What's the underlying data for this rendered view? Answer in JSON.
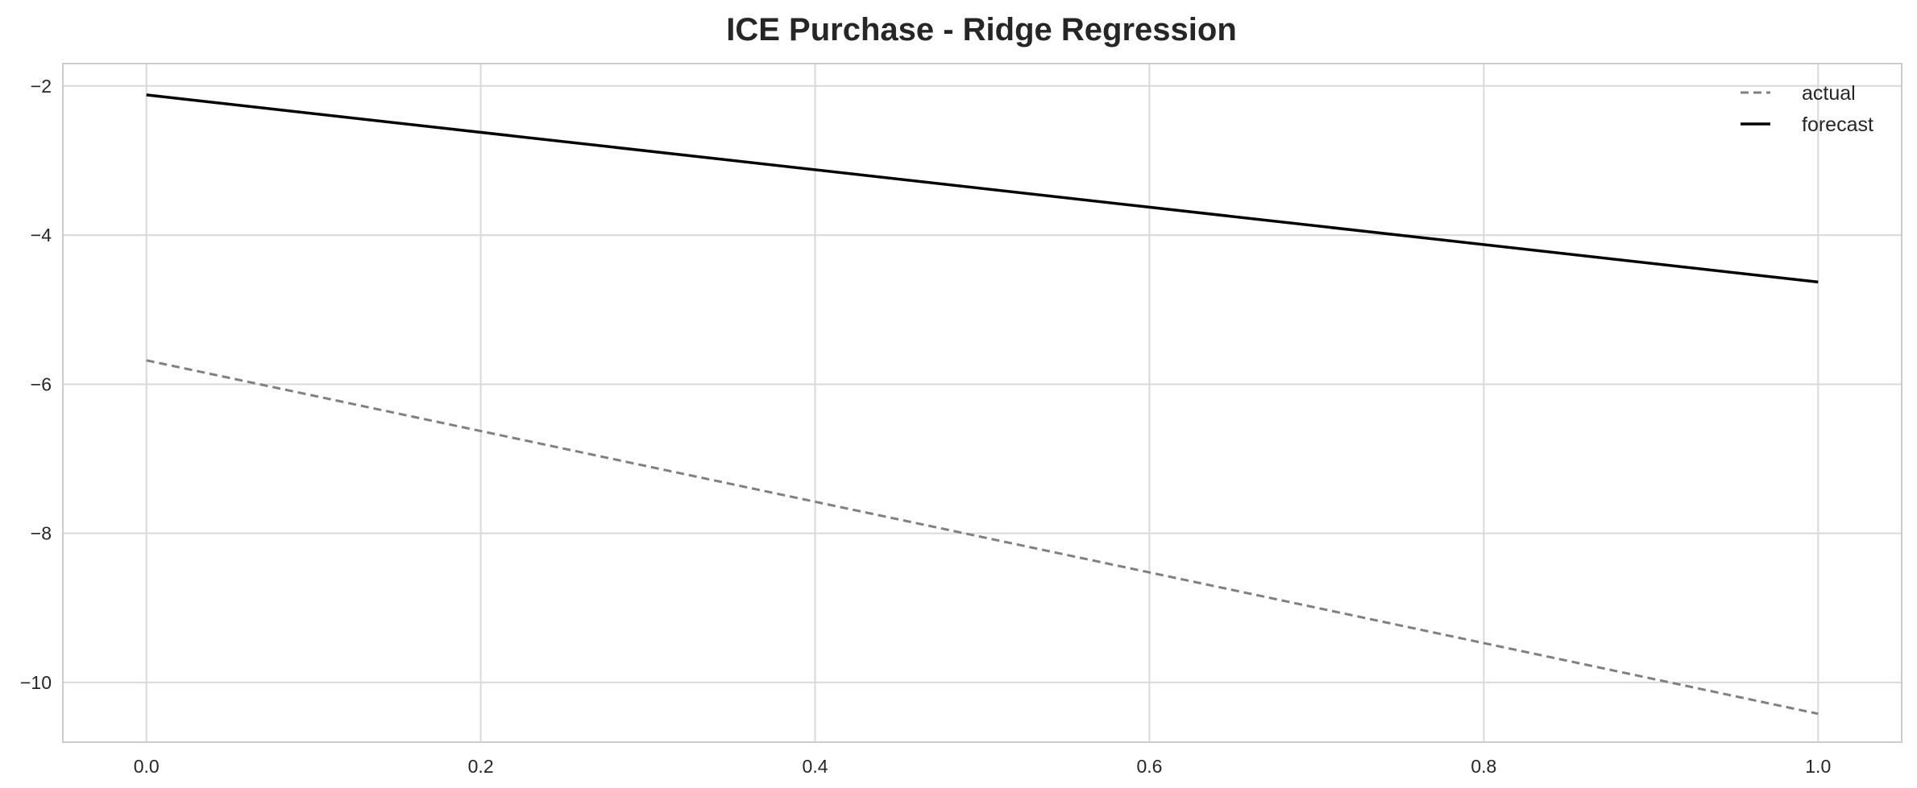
{
  "chart_data": {
    "type": "line",
    "title": "ICE Purchase - Ridge Regression",
    "xlabel": "",
    "ylabel": "",
    "xlim": [
      -0.05,
      1.05
    ],
    "ylim": [
      -10.8,
      -1.7
    ],
    "x_ticks": [
      "0.0",
      "0.2",
      "0.4",
      "0.6",
      "0.8",
      "1.0"
    ],
    "y_ticks": [
      "−2",
      "−4",
      "−6",
      "−8",
      "−10"
    ],
    "grid": true,
    "legend_position": "top-right",
    "series": [
      {
        "name": "actual",
        "style": "dashed",
        "color": "#808080",
        "x": [
          0.0,
          1.0
        ],
        "y": [
          -5.68,
          -10.42
        ]
      },
      {
        "name": "forecast",
        "style": "solid",
        "color": "#000000",
        "x": [
          0.0,
          1.0
        ],
        "y": [
          -2.12,
          -4.63
        ]
      }
    ]
  }
}
